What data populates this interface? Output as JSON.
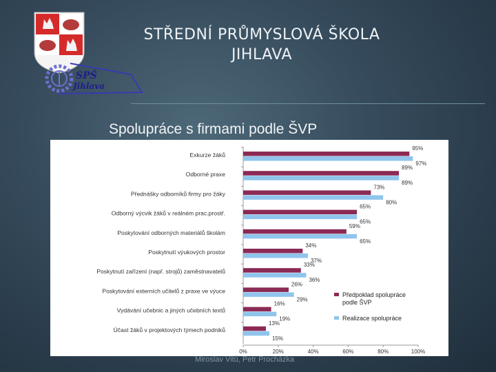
{
  "header": {
    "school_name_line1": "STŘEDNÍ PRŮMYSLOVÁ ŠKOLA",
    "school_name_line2": "JIHLAVA",
    "logo": {
      "line1": "SPŠ",
      "line2": "Jihlava",
      "icon": "school-crest-gear-logo"
    }
  },
  "slide": {
    "subtitle": "Spolupráce s firmami podle ŠVP"
  },
  "footer": {
    "authors": "Miroslav Vitů, Petr Procházka"
  },
  "colors": {
    "expected": "#8b2a55",
    "actual": "#8fc4ec",
    "background": "#34495a"
  },
  "chart_data": {
    "type": "bar",
    "orientation": "horizontal",
    "categories": [
      "Exkurze žáků",
      "Odborné praxe",
      "Přednášky odborníků firmy pro žáky",
      "Odborný výcvik žáků v reálném prac.prostř.",
      "Poskytování odborných materiálů školám",
      "Poskytnutí výukových prostor",
      "Poskytnutí zařízení (např. strojů) zaměstnavatelů",
      "Poskytování externích učitelů z praxe ve výuce",
      "Vydávání učebnic a jiných učebních textů",
      "Účast žáků v projektových týmech podniků"
    ],
    "series": [
      {
        "name": "Předpoklad spolupráce podle ŠVP",
        "values": [
          95,
          89,
          73,
          65,
          59,
          34,
          33,
          26,
          16,
          13
        ],
        "labels": [
          "95%",
          "89%",
          "73%",
          "65%",
          "59%",
          "34%",
          "33%",
          "26%",
          "16%",
          "13%"
        ]
      },
      {
        "name": "Realizace spolupráce",
        "values": [
          97,
          89,
          80,
          65,
          65,
          37,
          36,
          29,
          19,
          15
        ],
        "labels": [
          "97%",
          "89%",
          "80%",
          "65%",
          "65%",
          "37%",
          "36%",
          "29%",
          "19%",
          "15%"
        ]
      }
    ],
    "xticks": [
      "0%",
      "20%",
      "40%",
      "60%",
      "80%",
      "100%"
    ],
    "xlim": [
      0,
      100
    ],
    "legend_position": "bottom-right",
    "grid": false
  }
}
